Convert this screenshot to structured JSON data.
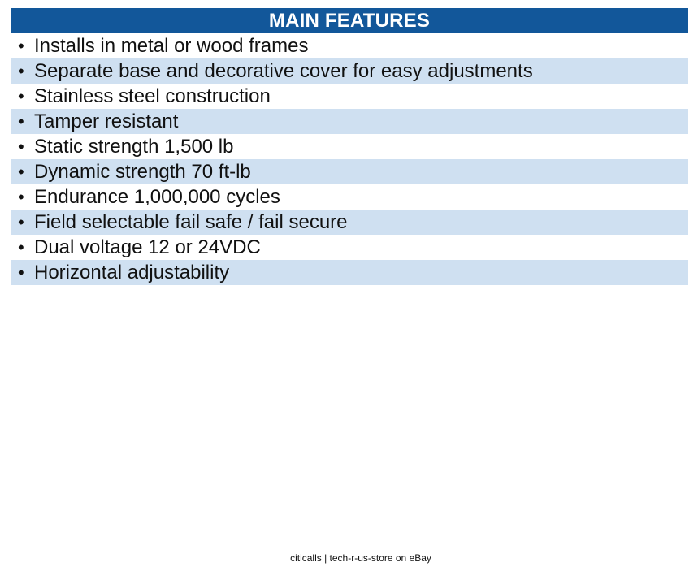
{
  "header": {
    "title": "MAIN FEATURES"
  },
  "features": [
    "Installs in metal or wood frames",
    "Separate base and decorative cover for easy adjustments",
    "Stainless steel construction",
    "Tamper resistant",
    "Static strength 1,500 lb",
    "Dynamic strength 70 ft-lb",
    "Endurance 1,000,000 cycles",
    "Field selectable fail safe / fail secure",
    "Dual voltage 12 or 24VDC",
    "Horizontal adjustability"
  ],
  "bullet_char": "•",
  "footer": {
    "text": "citicalls | tech-r-us-store on eBay"
  },
  "colors": {
    "header_bg": "#12579a",
    "stripe_bg": "#cfe0f1"
  }
}
